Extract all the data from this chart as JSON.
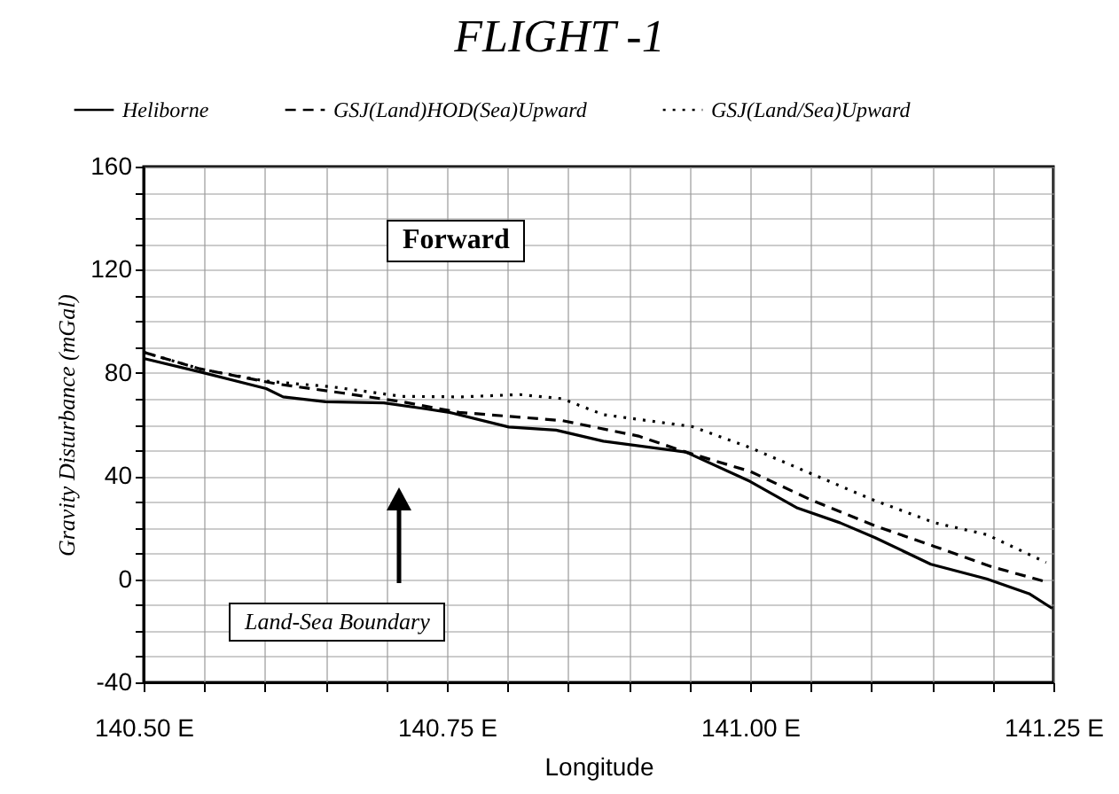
{
  "chart_data": {
    "type": "line",
    "title": "FLIGHT -1",
    "xlabel": "Longitude",
    "ylabel": "Gravity Disturbance (mGal)",
    "annotations": [
      "Forward",
      "Land-Sea Boundary"
    ],
    "xlim": [
      140.5,
      141.25
    ],
    "xticks": [
      {
        "value": 140.5,
        "label": "140.50 E"
      },
      {
        "value": 140.55,
        "label": null
      },
      {
        "value": 140.6,
        "label": null
      },
      {
        "value": 140.65,
        "label": null
      },
      {
        "value": 140.7,
        "label": null
      },
      {
        "value": 140.75,
        "label": "140.75 E"
      },
      {
        "value": 140.8,
        "label": null
      },
      {
        "value": 140.85,
        "label": null
      },
      {
        "value": 140.9,
        "label": null
      },
      {
        "value": 140.95,
        "label": null
      },
      {
        "value": 141.0,
        "label": "141.00 E"
      },
      {
        "value": 141.05,
        "label": null
      },
      {
        "value": 141.1,
        "label": null
      },
      {
        "value": 141.15,
        "label": null
      },
      {
        "value": 141.2,
        "label": null
      },
      {
        "value": 141.25,
        "label": "141.25 E"
      }
    ],
    "ylim": [
      -40,
      160
    ],
    "yticks": [
      -40,
      {
        "value": -30,
        "label": null
      },
      {
        "value": -20,
        "label": null
      },
      {
        "value": -10,
        "label": null
      },
      0,
      {
        "value": 10,
        "label": null
      },
      {
        "value": 20,
        "label": null
      },
      {
        "value": 30,
        "label": null
      },
      40,
      {
        "value": 50,
        "label": null
      },
      {
        "value": 60,
        "label": null
      },
      {
        "value": 70,
        "label": null
      },
      80,
      {
        "value": 90,
        "label": null
      },
      {
        "value": 100,
        "label": null
      },
      {
        "value": 110,
        "label": null
      },
      120,
      {
        "value": 130,
        "label": null
      },
      {
        "value": 140,
        "label": null
      },
      {
        "value": 150,
        "label": null
      },
      160
    ],
    "grid": true,
    "legend": "top",
    "marker": "none",
    "series": [
      {
        "name": "Heliborne",
        "color": "#000000",
        "line_style": "solid",
        "x": [
          140.5,
          140.547,
          140.601,
          140.615,
          140.65,
          140.698,
          140.732,
          140.752,
          140.801,
          140.84,
          140.879,
          140.947,
          141.0,
          141.039,
          141.074,
          141.103,
          141.149,
          141.195,
          141.23,
          141.249
        ],
        "values": [
          85.6,
          80.3,
          73.9,
          70.7,
          68.8,
          68.4,
          66.1,
          64.7,
          59,
          57.8,
          53.5,
          49.3,
          37.9,
          27.6,
          21.9,
          16.1,
          5.8,
          0.1,
          -5.6,
          -11.3
        ]
      },
      {
        "name": "GSJ(Land)HOD(Sea)Upward",
        "color": "#000000",
        "line_style": "dashed",
        "x": [
          140.5,
          140.547,
          140.61,
          140.664,
          140.713,
          140.76,
          140.845,
          140.908,
          140.947,
          141.0,
          141.049,
          141.103,
          141.152,
          141.2,
          141.244
        ],
        "values": [
          88,
          81.5,
          75.7,
          72.2,
          68.8,
          64.7,
          61.5,
          55.5,
          49.3,
          41.8,
          31,
          20.7,
          12.7,
          4.7,
          -1
        ]
      },
      {
        "name": "GSJ(Land/Sea)Upward",
        "color": "#000000",
        "line_style": "dotted",
        "x": [
          140.5,
          140.547,
          140.601,
          140.655,
          140.713,
          140.762,
          140.81,
          140.845,
          140.879,
          140.952,
          141.0,
          141.054,
          141.1,
          141.152,
          141.195,
          141.244
        ],
        "values": [
          88,
          81.5,
          76.8,
          74.6,
          70.9,
          70.7,
          71.6,
          70,
          63.8,
          59.2,
          51,
          40.2,
          31,
          21.9,
          17.3,
          6.5
        ]
      }
    ]
  }
}
